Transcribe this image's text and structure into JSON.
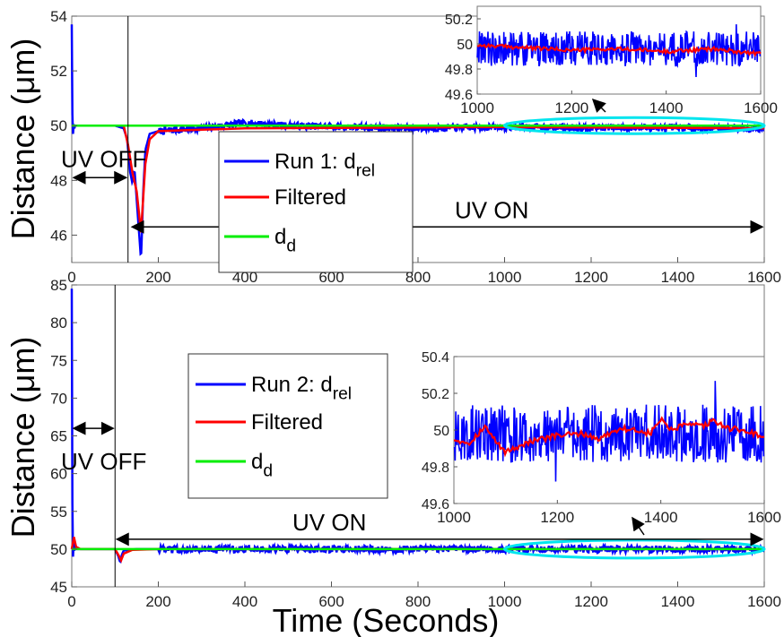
{
  "chart_data": [
    {
      "type": "line",
      "ylabel": "Distance (μm)",
      "xlim": [
        0,
        1600
      ],
      "ylim": [
        45,
        54
      ],
      "xticks": [
        0,
        200,
        400,
        600,
        800,
        1000,
        1200,
        1400,
        1600
      ],
      "yticks": [
        46,
        48,
        50,
        52,
        54
      ],
      "grid": false,
      "series": [
        {
          "name": "Run 1: d_rel",
          "color": "#0000ff",
          "x": [
            0,
            2,
            4,
            6,
            8,
            12,
            20,
            60,
            100,
            120,
            128,
            135,
            140,
            145,
            150,
            155,
            160,
            165,
            170,
            180,
            200,
            300,
            400,
            500,
            800,
            1000,
            1600
          ],
          "y": [
            53.7,
            49.3,
            50.1,
            49.9,
            50.0,
            50.0,
            50.0,
            50.0,
            50.0,
            49.9,
            49.5,
            48.3,
            47.9,
            48.4,
            47.3,
            46.2,
            45.1,
            47.5,
            49.1,
            49.7,
            49.8,
            49.9,
            50.1,
            50.0,
            49.9,
            49.95,
            49.9
          ]
        },
        {
          "name": "Filtered",
          "color": "#ff0000",
          "x": [
            0,
            20,
            100,
            120,
            130,
            140,
            150,
            160,
            170,
            180,
            200,
            300,
            400,
            1000,
            1600
          ],
          "y": [
            50.0,
            50.0,
            50.0,
            50.0,
            49.3,
            48.3,
            47.6,
            46.1,
            48.6,
            49.5,
            49.8,
            49.85,
            49.9,
            49.95,
            49.9
          ]
        },
        {
          "name": "d_d",
          "color": "#00ee00",
          "x": [
            0,
            1600
          ],
          "y": [
            50,
            50
          ]
        }
      ],
      "annotations": [
        {
          "text": "UV OFF",
          "x": [
            0,
            130
          ],
          "y": 48.1
        },
        {
          "text": "UV ON",
          "x": [
            135,
            1600
          ],
          "y": 46.3
        }
      ],
      "legend_placement": "center",
      "highlight_ellipse": {
        "x": [
          1000,
          1600
        ],
        "y": 50,
        "color": "#00e5ee"
      },
      "inset": {
        "xlim": [
          1000,
          1600
        ],
        "ylim": [
          49.6,
          50.3
        ],
        "xticks": [
          1000,
          1200,
          1400,
          1600
        ],
        "yticks": [
          49.6,
          49.8,
          50,
          50.2
        ],
        "raw_mean": 49.96,
        "raw_amplitude": 0.14,
        "filtered": {
          "x": [
            1000,
            1100,
            1200,
            1300,
            1400,
            1500,
            1600
          ],
          "y": [
            49.99,
            49.97,
            49.95,
            49.96,
            49.94,
            49.96,
            49.92
          ]
        }
      }
    },
    {
      "type": "line",
      "ylabel": "Distance (μm)",
      "xlabel": "Time (Seconds)",
      "xlim": [
        0,
        1600
      ],
      "ylim": [
        45,
        85
      ],
      "xticks": [
        0,
        200,
        400,
        600,
        800,
        1000,
        1200,
        1400,
        1600
      ],
      "yticks": [
        45,
        50,
        55,
        60,
        65,
        70,
        75,
        80,
        85
      ],
      "grid": false,
      "series": [
        {
          "name": "Run 2: d_rel",
          "color": "#0000ff",
          "x": [
            0,
            2,
            4,
            6,
            8,
            12,
            30,
            60,
            90,
            100,
            108,
            112,
            116,
            120,
            130,
            150,
            200,
            1600
          ],
          "y": [
            84.5,
            46.5,
            51.5,
            49.8,
            50.2,
            50.0,
            50.0,
            50.0,
            50.0,
            50.0,
            49.0,
            48.2,
            49.3,
            49.8,
            49.9,
            50.0,
            50.0,
            50.0
          ]
        },
        {
          "name": "Filtered",
          "color": "#ff0000",
          "x": [
            0,
            5,
            10,
            20,
            100,
            108,
            114,
            120,
            140,
            200,
            1600
          ],
          "y": [
            50.0,
            51.6,
            50.3,
            50.0,
            50.0,
            49.2,
            48.5,
            49.4,
            49.9,
            50.0,
            50.0
          ]
        },
        {
          "name": "d_d",
          "color": "#00ee00",
          "x": [
            0,
            1600
          ],
          "y": [
            50,
            50
          ]
        }
      ],
      "annotations": [
        {
          "text": "UV OFF",
          "x": [
            0,
            100
          ],
          "y": 66
        },
        {
          "text": "UV ON",
          "x": [
            100,
            1600
          ],
          "y": 51.3
        }
      ],
      "legend_placement": "center-left",
      "highlight_ellipse": {
        "x": [
          1000,
          1600
        ],
        "y": 50,
        "color": "#00e5ee"
      },
      "inset": {
        "xlim": [
          1000,
          1600
        ],
        "ylim": [
          49.6,
          50.4
        ],
        "xticks": [
          1000,
          1200,
          1400,
          1600
        ],
        "yticks": [
          49.6,
          49.8,
          50,
          50.2,
          50.4
        ],
        "raw_mean": 49.98,
        "raw_amplitude": 0.16,
        "filtered": {
          "x": [
            1000,
            1030,
            1060,
            1080,
            1100,
            1140,
            1200,
            1250,
            1280,
            1320,
            1350,
            1380,
            1400,
            1420,
            1450,
            1480,
            1500,
            1530,
            1560,
            1600
          ],
          "y": [
            49.95,
            49.93,
            50.02,
            49.94,
            49.88,
            49.93,
            49.97,
            49.98,
            49.95,
            50.01,
            50.0,
            49.98,
            50.06,
            50.0,
            50.03,
            50.02,
            50.05,
            50.01,
            50.0,
            49.96
          ]
        }
      }
    }
  ]
}
